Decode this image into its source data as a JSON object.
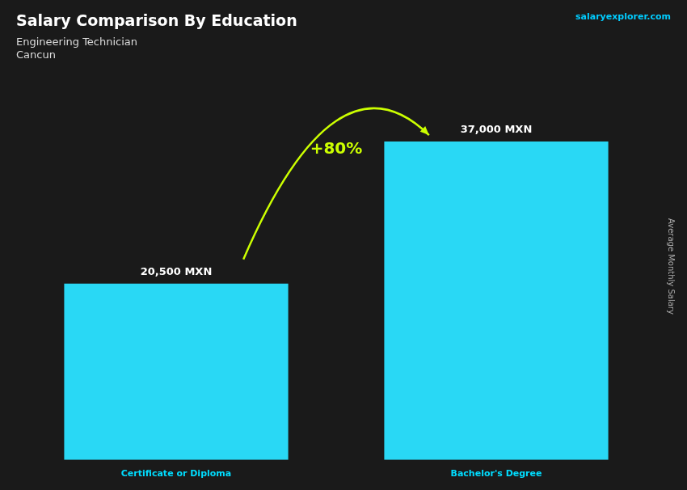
{
  "chart_data": {
    "type": "bar",
    "title": "Salary Comparison By Education",
    "subtitle": "Engineering Technician",
    "y_label": "Average Monthly Salary",
    "categories": [
      "Certificate or Diploma",
      "Bachelor's Degree"
    ],
    "values": [
      20500,
      37000
    ],
    "value_labels": [
      "20,500 MXN",
      "37,000 MXN"
    ],
    "color": "#29d8f5",
    "ylim": [
      0,
      45000
    ],
    "data_labels": true,
    "tick_labels": "x",
    "grid": false,
    "annotations": [
      "Cancun",
      "+80%",
      "salaryexplorer.com"
    ]
  }
}
